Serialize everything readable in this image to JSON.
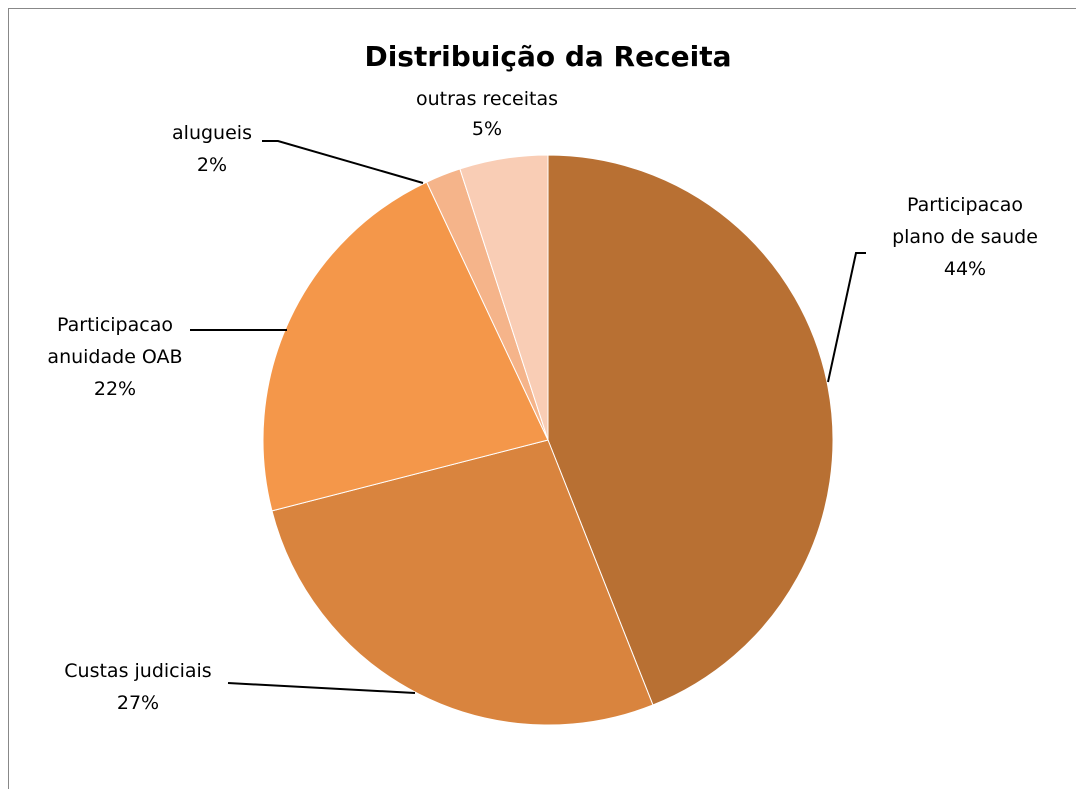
{
  "chart_data": {
    "type": "pie",
    "title": "Distribuição da Receita",
    "categories": [
      "Participacao plano de saude",
      "Custas judiciais",
      "Participacao anuidade OAB",
      "alugueis",
      "outras receitas"
    ],
    "values": [
      44,
      27,
      22,
      2,
      5
    ],
    "value_labels": [
      "44%",
      "27%",
      "22%",
      "2%",
      "5%"
    ],
    "colors": [
      "#b87033",
      "#d9843e",
      "#f4974a",
      "#f5b48a",
      "#f9cdb5"
    ]
  }
}
